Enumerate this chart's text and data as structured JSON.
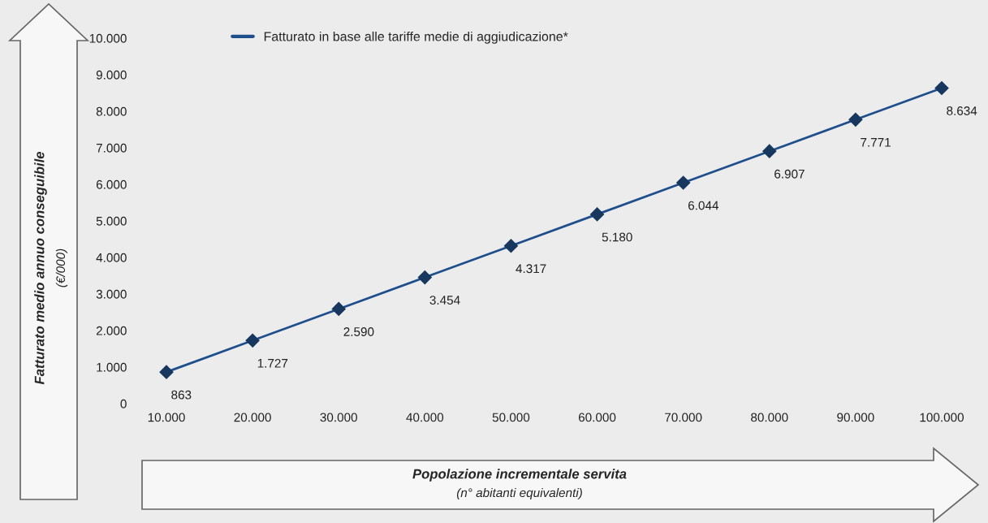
{
  "chart_data": {
    "type": "line",
    "xlabel": "Popolazione incrementale servita\n(n° abitanti equivalenti)",
    "ylabel": "Fatturato medio annuo conseguibile\n(€/000)",
    "x": [
      10000,
      20000,
      30000,
      40000,
      50000,
      60000,
      70000,
      80000,
      90000,
      100000
    ],
    "series": [
      {
        "name": "Fatturato in base alle tariffe medie di aggiudicazione*",
        "color": "#1f4e8c",
        "values": [
          863,
          1727,
          2590,
          3454,
          4317,
          5180,
          6044,
          6907,
          7771,
          8634
        ],
        "value_labels": [
          "863",
          "1.727",
          "2.590",
          "3.454",
          "4.317",
          "5.180",
          "6.044",
          "6.907",
          "7.771",
          "8.634"
        ]
      }
    ],
    "xlim": [
      10000,
      100000
    ],
    "xticks": [
      {
        "value": 10000,
        "label": "10.000"
      },
      {
        "value": 20000,
        "label": "20.000"
      },
      {
        "value": 30000,
        "label": "30.000"
      },
      {
        "value": 40000,
        "label": "40.000"
      },
      {
        "value": 50000,
        "label": "50.000"
      },
      {
        "value": 60000,
        "label": "60.000"
      },
      {
        "value": 70000,
        "label": "70.000"
      },
      {
        "value": 80000,
        "label": "80.000"
      },
      {
        "value": 90000,
        "label": "90.000"
      },
      {
        "value": 100000,
        "label": "100.000"
      }
    ],
    "ylim": [
      0,
      10000
    ],
    "yticks": [
      0,
      {
        "value": 1000,
        "label": "1.000"
      },
      {
        "value": 2000,
        "label": "2.000"
      },
      {
        "value": 3000,
        "label": "3.000"
      },
      {
        "value": 4000,
        "label": "4.000"
      },
      {
        "value": 5000,
        "label": "5.000"
      },
      {
        "value": 6000,
        "label": "6.000"
      },
      {
        "value": 7000,
        "label": "7.000"
      },
      {
        "value": 8000,
        "label": "8.000"
      },
      {
        "value": 9000,
        "label": "9.000"
      },
      {
        "value": 10000,
        "label": "10.000"
      }
    ],
    "marker": "diamond",
    "line_style": "solid",
    "legend": "top",
    "grid": false
  }
}
